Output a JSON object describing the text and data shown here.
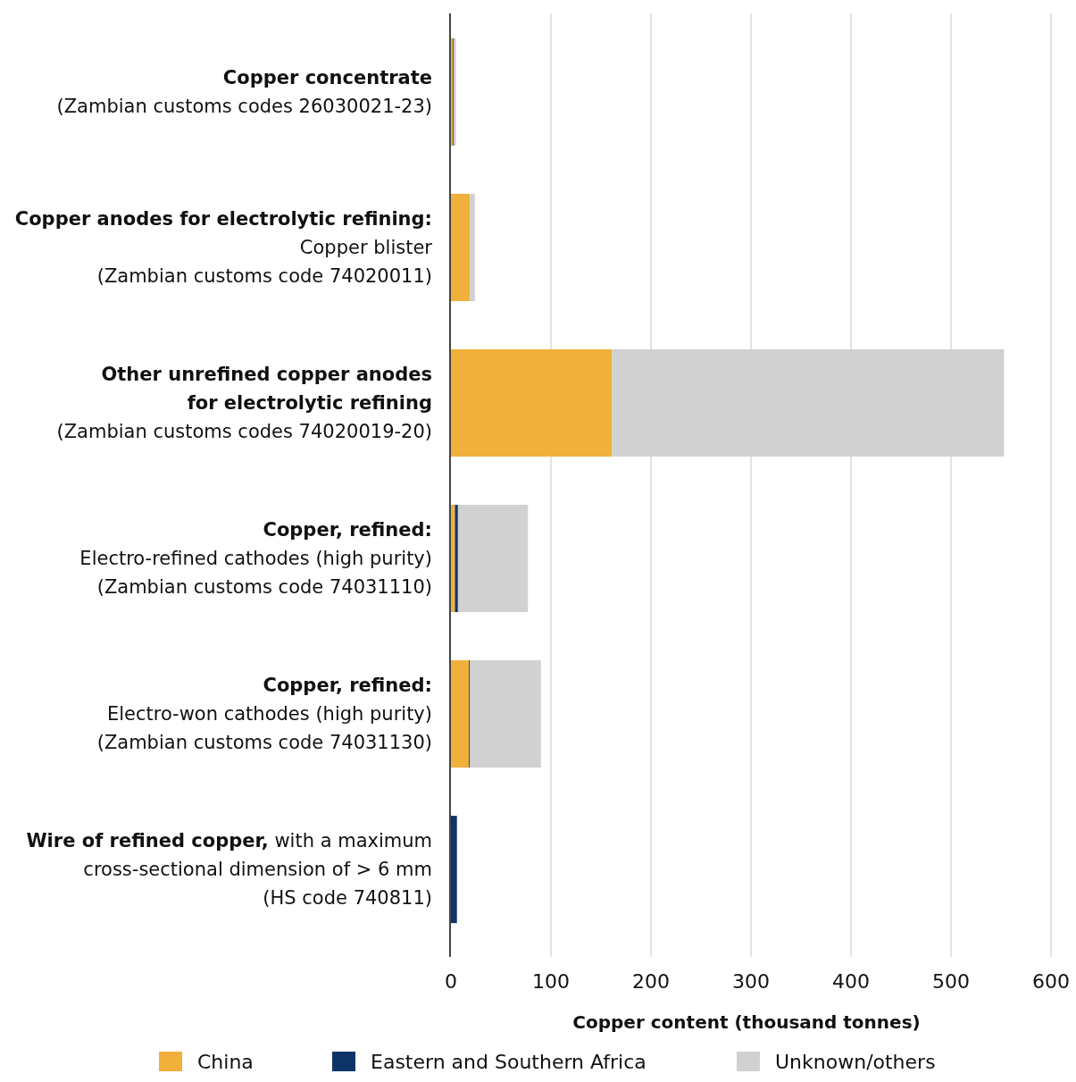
{
  "chart_data": {
    "type": "bar",
    "orientation": "horizontal",
    "stacked": true,
    "categories": [
      "Copper concentrate\n(Zambian customs codes 26030021-23)",
      "Copper anodes for electrolytic refining:\nCopper blister\n(Zambian customs code 74020011)",
      "Other unrefined copper anodes\nfor electrolytic refining\n(Zambian customs codes 74020019-20)",
      "Copper, refined:\nElectro-refined cathodes (high purity)\n(Zambian customs code 74031110)",
      "Copper, refined:\nElectro-won cathodes (high purity)\n(Zambian customs code 74031130)",
      "Wire of refined copper, with a maximum\ncross-sectional dimension of > 6 mm\n(HS code 740811)"
    ],
    "series": [
      {
        "name": "China",
        "color": "#f0b03b",
        "values": [
          2,
          19,
          161,
          4,
          18,
          0
        ]
      },
      {
        "name": "Eastern and Southern Africa",
        "color": "#0f3468",
        "values": [
          1,
          0,
          0,
          3,
          1,
          6
        ]
      },
      {
        "name": "Unknown/others",
        "color": "#d0d1d0",
        "values": [
          2,
          5,
          392,
          70,
          71,
          0
        ]
      }
    ],
    "xlim": [
      0,
      600
    ],
    "xticks": [
      0,
      100,
      200,
      300,
      400,
      500,
      600
    ],
    "xlabel": "Copper content (thousand tonnes)",
    "grid": "x",
    "legend": "bottom"
  }
}
